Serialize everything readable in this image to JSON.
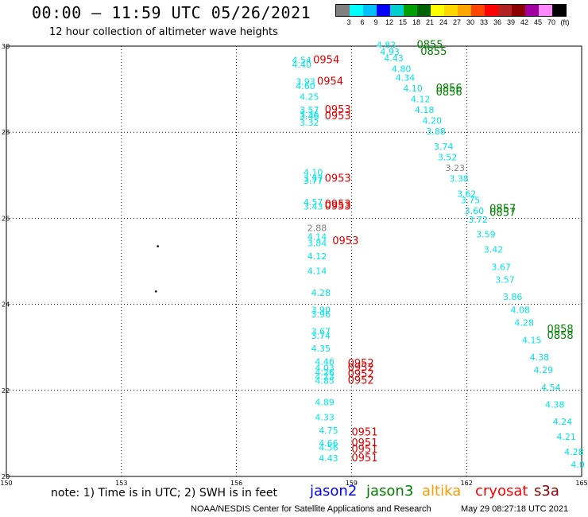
{
  "header": {
    "title": "00:00 – 11:59 UTC 05/26/2021",
    "subtitle": "12 hour collection of altimeter wave heights"
  },
  "legend": {
    "colors": [
      "#808080",
      "#00ffff",
      "#00bfff",
      "#0000ff",
      "#00ced1",
      "#00a000",
      "#006400",
      "#ffff00",
      "#ffd700",
      "#ffa500",
      "#ff4500",
      "#ff0000",
      "#b22222",
      "#8b0000",
      "#a000a0",
      "#ff88ff",
      "#000000"
    ],
    "labels": [
      "3",
      "6",
      "9",
      "12",
      "15",
      "18",
      "21",
      "24",
      "27",
      "30",
      "33",
      "36",
      "39",
      "42",
      "45",
      "70",
      "(ft)"
    ]
  },
  "map": {
    "lon_range": [
      150,
      165
    ],
    "lat_range": [
      20,
      30
    ],
    "lon_ticks": [
      "150",
      "153",
      "156",
      "159",
      "162",
      "165"
    ],
    "lat_ticks": [
      "30",
      "28",
      "26",
      "24",
      "22",
      "20"
    ]
  },
  "chart_data": {
    "type": "scatter",
    "wave_labels": [
      {
        "text": "4.54",
        "lon": 157.7,
        "lat": 29.6,
        "color": "#00e5e5"
      },
      {
        "text": "4.40",
        "lon": 157.7,
        "lat": 29.5,
        "color": "#00e5e5"
      },
      {
        "text": "3.93",
        "lon": 157.8,
        "lat": 29.1,
        "color": "#00e5e5"
      },
      {
        "text": "4.60",
        "lon": 157.8,
        "lat": 29.0,
        "color": "#00e5e5"
      },
      {
        "text": "4.25",
        "lon": 157.9,
        "lat": 28.75,
        "color": "#00e5e5"
      },
      {
        "text": "3.57",
        "lon": 157.9,
        "lat": 28.45,
        "color": "#00e5e5"
      },
      {
        "text": "3.36",
        "lon": 157.9,
        "lat": 28.35,
        "color": "#00e5e5"
      },
      {
        "text": "3.46",
        "lon": 157.9,
        "lat": 28.3,
        "color": "#00e5e5"
      },
      {
        "text": "3.32",
        "lon": 157.9,
        "lat": 28.15,
        "color": "#00e5e5"
      },
      {
        "text": "4.10",
        "lon": 158.0,
        "lat": 27.0,
        "color": "#00e5e5"
      },
      {
        "text": "3.97",
        "lon": 158.0,
        "lat": 26.85,
        "color": "#00e5e5"
      },
      {
        "text": "3.77",
        "lon": 158.0,
        "lat": 26.8,
        "color": "#00e5e5"
      },
      {
        "text": "4.57",
        "lon": 158.0,
        "lat": 26.3,
        "color": "#00e5e5"
      },
      {
        "text": "3.43",
        "lon": 158.0,
        "lat": 26.2,
        "color": "#00e5e5"
      },
      {
        "text": "2.88",
        "lon": 158.1,
        "lat": 25.7,
        "color": "#808080"
      },
      {
        "text": "4.14",
        "lon": 158.1,
        "lat": 25.5,
        "color": "#00e5e5"
      },
      {
        "text": "3.84",
        "lon": 158.1,
        "lat": 25.35,
        "color": "#00e5e5"
      },
      {
        "text": "4.12",
        "lon": 158.1,
        "lat": 25.05,
        "color": "#00e5e5"
      },
      {
        "text": "4.14",
        "lon": 158.1,
        "lat": 24.7,
        "color": "#00e5e5"
      },
      {
        "text": "4.28",
        "lon": 158.2,
        "lat": 24.2,
        "color": "#00e5e5"
      },
      {
        "text": "3.90",
        "lon": 158.2,
        "lat": 23.8,
        "color": "#00e5e5"
      },
      {
        "text": "3.96",
        "lon": 158.2,
        "lat": 23.7,
        "color": "#00e5e5"
      },
      {
        "text": "3.67",
        "lon": 158.2,
        "lat": 23.3,
        "color": "#00e5e5"
      },
      {
        "text": "3.74",
        "lon": 158.2,
        "lat": 23.2,
        "color": "#00e5e5"
      },
      {
        "text": "4.35",
        "lon": 158.2,
        "lat": 22.9,
        "color": "#00e5e5"
      },
      {
        "text": "4.46",
        "lon": 158.3,
        "lat": 22.6,
        "color": "#00e5e5"
      },
      {
        "text": "4.03",
        "lon": 158.3,
        "lat": 22.45,
        "color": "#00e5e5"
      },
      {
        "text": "4.26",
        "lon": 158.3,
        "lat": 22.35,
        "color": "#00e5e5"
      },
      {
        "text": "4.73",
        "lon": 158.3,
        "lat": 22.25,
        "color": "#00e5e5"
      },
      {
        "text": "4.85",
        "lon": 158.3,
        "lat": 22.15,
        "color": "#00e5e5"
      },
      {
        "text": "4.89",
        "lon": 158.3,
        "lat": 21.65,
        "color": "#00e5e5"
      },
      {
        "text": "4.33",
        "lon": 158.3,
        "lat": 21.3,
        "color": "#00e5e5"
      },
      {
        "text": "4.75",
        "lon": 158.4,
        "lat": 21.0,
        "color": "#00e5e5"
      },
      {
        "text": "4.66",
        "lon": 158.4,
        "lat": 20.7,
        "color": "#00e5e5"
      },
      {
        "text": "4.56",
        "lon": 158.4,
        "lat": 20.6,
        "color": "#00e5e5"
      },
      {
        "text": "4.43",
        "lon": 158.4,
        "lat": 20.35,
        "color": "#00e5e5"
      },
      {
        "text": "4.83",
        "lon": 159.9,
        "lat": 29.95,
        "color": "#00e5e5"
      },
      {
        "text": "4.93",
        "lon": 160.0,
        "lat": 29.8,
        "color": "#00e5e5"
      },
      {
        "text": "4.43",
        "lon": 160.1,
        "lat": 29.65,
        "color": "#00e5e5"
      },
      {
        "text": "4.80",
        "lon": 160.3,
        "lat": 29.4,
        "color": "#00e5e5"
      },
      {
        "text": "4.34",
        "lon": 160.4,
        "lat": 29.2,
        "color": "#00e5e5"
      },
      {
        "text": "4.10",
        "lon": 160.6,
        "lat": 28.95,
        "color": "#00e5e5"
      },
      {
        "text": "4.12",
        "lon": 160.8,
        "lat": 28.7,
        "color": "#00e5e5"
      },
      {
        "text": "4.18",
        "lon": 160.9,
        "lat": 28.45,
        "color": "#00e5e5"
      },
      {
        "text": "4.20",
        "lon": 161.1,
        "lat": 28.2,
        "color": "#00e5e5"
      },
      {
        "text": "3.88",
        "lon": 161.2,
        "lat": 27.95,
        "color": "#00e5e5"
      },
      {
        "text": "3.74",
        "lon": 161.4,
        "lat": 27.6,
        "color": "#00e5e5"
      },
      {
        "text": "3.52",
        "lon": 161.5,
        "lat": 27.35,
        "color": "#00e5e5"
      },
      {
        "text": "3.23",
        "lon": 161.7,
        "lat": 27.1,
        "color": "#808080"
      },
      {
        "text": "3.38",
        "lon": 161.8,
        "lat": 26.85,
        "color": "#00e5e5"
      },
      {
        "text": "3.62",
        "lon": 162.0,
        "lat": 26.5,
        "color": "#00e5e5"
      },
      {
        "text": "3.75",
        "lon": 162.1,
        "lat": 26.35,
        "color": "#00e5e5"
      },
      {
        "text": "3.60",
        "lon": 162.2,
        "lat": 26.1,
        "color": "#00e5e5"
      },
      {
        "text": "3.72",
        "lon": 162.3,
        "lat": 25.9,
        "color": "#00e5e5"
      },
      {
        "text": "3.59",
        "lon": 162.5,
        "lat": 25.55,
        "color": "#00e5e5"
      },
      {
        "text": "3.42",
        "lon": 162.7,
        "lat": 25.2,
        "color": "#00e5e5"
      },
      {
        "text": "3.67",
        "lon": 162.9,
        "lat": 24.8,
        "color": "#00e5e5"
      },
      {
        "text": "3.57",
        "lon": 163.0,
        "lat": 24.5,
        "color": "#00e5e5"
      },
      {
        "text": "3.86",
        "lon": 163.2,
        "lat": 24.1,
        "color": "#00e5e5"
      },
      {
        "text": "4.08",
        "lon": 163.4,
        "lat": 23.8,
        "color": "#00e5e5"
      },
      {
        "text": "4.28",
        "lon": 163.5,
        "lat": 23.5,
        "color": "#00e5e5"
      },
      {
        "text": "4.15",
        "lon": 163.7,
        "lat": 23.1,
        "color": "#00e5e5"
      },
      {
        "text": "4.38",
        "lon": 163.9,
        "lat": 22.7,
        "color": "#00e5e5"
      },
      {
        "text": "4.29",
        "lon": 164.0,
        "lat": 22.4,
        "color": "#00e5e5"
      },
      {
        "text": "4.54",
        "lon": 164.2,
        "lat": 22.0,
        "color": "#00e5e5"
      },
      {
        "text": "4.38",
        "lon": 164.3,
        "lat": 21.6,
        "color": "#00e5e5"
      },
      {
        "text": "4.24",
        "lon": 164.5,
        "lat": 21.2,
        "color": "#00e5e5"
      },
      {
        "text": "4.21",
        "lon": 164.6,
        "lat": 20.85,
        "color": "#00e5e5"
      },
      {
        "text": "4.28",
        "lon": 164.8,
        "lat": 20.5,
        "color": "#00e5e5"
      },
      {
        "text": "4.0",
        "lon": 164.9,
        "lat": 20.2,
        "color": "#00e5e5"
      }
    ],
    "time_labels": [
      {
        "text": "0954",
        "lon": 158.0,
        "lat": 29.6,
        "color": "#e00000"
      },
      {
        "text": "0954",
        "lon": 158.1,
        "lat": 29.1,
        "color": "#e00000"
      },
      {
        "text": "0953",
        "lon": 158.3,
        "lat": 28.45,
        "color": "#e00000"
      },
      {
        "text": "0953",
        "lon": 158.3,
        "lat": 28.3,
        "color": "#e00000"
      },
      {
        "text": "0953",
        "lon": 158.3,
        "lat": 26.85,
        "color": "#e00000"
      },
      {
        "text": "0953",
        "lon": 158.3,
        "lat": 26.25,
        "color": "#e00000"
      },
      {
        "text": "0953",
        "lon": 158.3,
        "lat": 26.2,
        "color": "#e00000"
      },
      {
        "text": "0953",
        "lon": 158.5,
        "lat": 25.4,
        "color": "#e00000"
      },
      {
        "text": "0952",
        "lon": 158.9,
        "lat": 22.55,
        "color": "#e00000"
      },
      {
        "text": "0952",
        "lon": 158.9,
        "lat": 22.45,
        "color": "#e00000"
      },
      {
        "text": "0952",
        "lon": 158.9,
        "lat": 22.3,
        "color": "#e00000"
      },
      {
        "text": "0952",
        "lon": 158.9,
        "lat": 22.15,
        "color": "#e00000"
      },
      {
        "text": "0951",
        "lon": 159.0,
        "lat": 20.95,
        "color": "#e00000"
      },
      {
        "text": "0951",
        "lon": 159.0,
        "lat": 20.7,
        "color": "#e00000"
      },
      {
        "text": "0951",
        "lon": 159.0,
        "lat": 20.55,
        "color": "#e00000"
      },
      {
        "text": "0951",
        "lon": 159.0,
        "lat": 20.35,
        "color": "#e00000"
      },
      {
        "text": "0855",
        "lon": 160.7,
        "lat": 29.95,
        "color": "#008000"
      },
      {
        "text": "0855",
        "lon": 160.8,
        "lat": 29.8,
        "color": "#008000"
      },
      {
        "text": "0856",
        "lon": 161.2,
        "lat": 28.95,
        "color": "#008000"
      },
      {
        "text": "0856",
        "lon": 161.2,
        "lat": 28.85,
        "color": "#008000"
      },
      {
        "text": "0857",
        "lon": 162.6,
        "lat": 26.15,
        "color": "#008000"
      },
      {
        "text": "0857",
        "lon": 162.6,
        "lat": 26.05,
        "color": "#008000"
      },
      {
        "text": "0858",
        "lon": 164.1,
        "lat": 23.35,
        "color": "#008000"
      },
      {
        "text": "0858",
        "lon": 164.1,
        "lat": 23.2,
        "color": "#008000"
      }
    ],
    "dots": [
      {
        "lon": 153.95,
        "lat": 25.35
      },
      {
        "lon": 153.9,
        "lat": 24.3
      }
    ]
  },
  "footer": {
    "note": "note:  1) Time is in UTC;  2) SWH is in feet",
    "missions": [
      {
        "name": "jason2",
        "color": "#0000ff"
      },
      {
        "name": "jason3",
        "color": "#008000"
      },
      {
        "name": "altika",
        "color": "#ff9900"
      },
      {
        "name": "cryosat",
        "color": "#ff0000"
      },
      {
        "name": "s3a",
        "color": "#8b0000"
      }
    ],
    "credit": "NOAA/NESDIS Center for Satellite Applications and Research",
    "timestamp": "May 29 08:27:18 UTC 2021"
  }
}
